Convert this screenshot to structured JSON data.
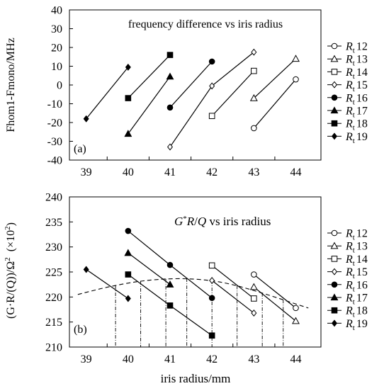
{
  "chart_data": [
    {
      "type": "line",
      "title": "frequency difference vs iris radius",
      "panel_label": "(a)",
      "ylabel": "Fhom1-Fmono/MHz",
      "xlabel": "",
      "xlim": [
        38.6,
        44.6
      ],
      "ylim": [
        -40,
        40
      ],
      "x_ticks": [
        "39",
        "40",
        "41",
        "42",
        "43",
        "44"
      ],
      "y_ticks": [
        "-40",
        "-30",
        "-20",
        "-10",
        "0",
        "10",
        "20",
        "30",
        "40"
      ],
      "grid": false,
      "legend_position": "right",
      "series": [
        {
          "name": "12",
          "marker": "circle-open",
          "x": [
            43,
            44
          ],
          "y": [
            -23,
            3
          ]
        },
        {
          "name": "13",
          "marker": "triangle-open",
          "x": [
            43,
            44
          ],
          "y": [
            -7,
            14
          ]
        },
        {
          "name": "14",
          "marker": "square-open",
          "x": [
            42,
            43
          ],
          "y": [
            -16.5,
            7.5
          ]
        },
        {
          "name": "15",
          "marker": "diamond-open",
          "x": [
            41,
            42,
            43
          ],
          "y": [
            -33,
            -0.5,
            17.5
          ]
        },
        {
          "name": "16",
          "marker": "circle-filled",
          "x": [
            41,
            42
          ],
          "y": [
            -12,
            12.5
          ]
        },
        {
          "name": "17",
          "marker": "triangle-filled",
          "x": [
            40,
            41
          ],
          "y": [
            -26,
            4.5
          ]
        },
        {
          "name": "18",
          "marker": "square-filled",
          "x": [
            40,
            41
          ],
          "y": [
            -7,
            16
          ]
        },
        {
          "name": "19",
          "marker": "diamond-filled",
          "x": [
            39,
            40
          ],
          "y": [
            -18,
            9.5
          ]
        }
      ]
    },
    {
      "type": "line",
      "title_main": "G",
      "title_sup": "*",
      "title_mid": "R",
      "title_slash": "/",
      "title_q": "Q",
      "title_rest": " vs iris radius",
      "panel_label": "(b)",
      "ylabel_main": "(G·R/(Q))/Ω",
      "ylabel_sup": "2",
      "ylabel_unit_open": "(×10",
      "ylabel_unit_sup": "2",
      "ylabel_unit_close": ")",
      "xlabel": "iris radius/mm",
      "xlim": [
        38.6,
        44.6
      ],
      "ylim": [
        210,
        240
      ],
      "x_ticks": [
        "39",
        "40",
        "41",
        "42",
        "43",
        "44"
      ],
      "y_ticks": [
        "210",
        "215",
        "220",
        "225",
        "230",
        "235",
        "240"
      ],
      "grid": false,
      "legend_position": "right",
      "series": [
        {
          "name": "12",
          "marker": "circle-open",
          "x": [
            43,
            44
          ],
          "y": [
            224.5,
            217.8
          ]
        },
        {
          "name": "13",
          "marker": "triangle-open",
          "x": [
            43,
            44
          ],
          "y": [
            222,
            215.2
          ]
        },
        {
          "name": "14",
          "marker": "square-open",
          "x": [
            42,
            43
          ],
          "y": [
            226.3,
            219.7
          ]
        },
        {
          "name": "15",
          "marker": "diamond-open",
          "x": [
            42,
            43
          ],
          "y": [
            223.3,
            216.8
          ]
        },
        {
          "name": "16",
          "marker": "circle-filled",
          "x": [
            40,
            41,
            42
          ],
          "y": [
            233.2,
            226.4,
            219.8
          ]
        },
        {
          "name": "17",
          "marker": "triangle-filled",
          "x": [
            40,
            41
          ],
          "y": [
            228.8,
            222.5
          ]
        },
        {
          "name": "18",
          "marker": "square-filled",
          "x": [
            40,
            41,
            42
          ],
          "y": [
            224.5,
            218.3,
            212.3
          ]
        },
        {
          "name": "19",
          "marker": "diamond-filled",
          "x": [
            39,
            40
          ],
          "y": [
            225.5,
            219.7
          ]
        }
      ],
      "fit_curve": {
        "style": "dashed",
        "x": [
          38.8,
          39.5,
          40.2,
          40.8,
          41.4,
          42.0,
          42.5,
          43.0,
          43.5,
          44.0,
          44.3
        ],
        "y": [
          220.5,
          222.0,
          223.1,
          223.6,
          223.7,
          223.3,
          222.5,
          221.3,
          220.0,
          218.6,
          217.8
        ]
      },
      "drop_lines_x": [
        39.7,
        40.3,
        40.9,
        41.4,
        42.0,
        42.6,
        43.2,
        43.7
      ]
    }
  ],
  "legend": {
    "prefix": "R",
    "subscript": "t",
    "items": [
      "12",
      "13",
      "14",
      "15",
      "16",
      "17",
      "18",
      "19"
    ]
  }
}
